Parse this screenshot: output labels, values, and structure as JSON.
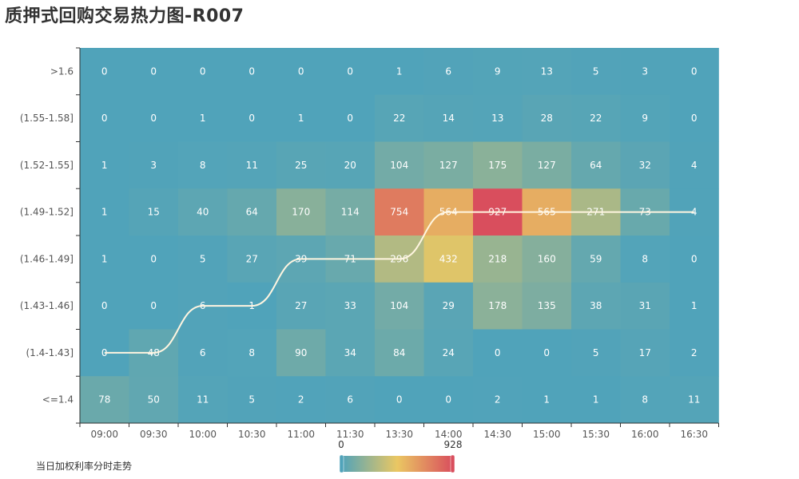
{
  "title": "质押式回购交易热力图-R007",
  "chart_data": {
    "type": "heatmap",
    "x_categories": [
      "09:00",
      "09:30",
      "10:00",
      "10:30",
      "11:00",
      "11:30",
      "13:30",
      "14:00",
      "14:30",
      "15:00",
      "15:30",
      "16:00",
      "16:30"
    ],
    "y_categories": [
      ">1.6",
      "(1.55-1.58]",
      "(1.52-1.55]",
      "(1.49-1.52]",
      "(1.46-1.49]",
      "(1.43-1.46]",
      "(1.4-1.43]",
      "<=1.4"
    ],
    "values": [
      [
        0,
        0,
        0,
        0,
        0,
        0,
        1,
        6,
        9,
        13,
        5,
        3,
        0
      ],
      [
        0,
        0,
        1,
        0,
        1,
        0,
        22,
        14,
        13,
        28,
        22,
        9,
        0
      ],
      [
        1,
        3,
        8,
        11,
        25,
        20,
        104,
        127,
        175,
        127,
        64,
        32,
        4
      ],
      [
        1,
        15,
        40,
        64,
        170,
        114,
        754,
        564,
        927,
        565,
        271,
        73,
        4
      ],
      [
        1,
        0,
        5,
        27,
        39,
        71,
        296,
        432,
        218,
        160,
        59,
        8,
        0
      ],
      [
        0,
        0,
        6,
        1,
        27,
        33,
        104,
        29,
        178,
        135,
        38,
        31,
        1
      ],
      [
        0,
        48,
        6,
        8,
        90,
        34,
        84,
        24,
        0,
        0,
        5,
        17,
        2
      ],
      [
        78,
        50,
        11,
        5,
        2,
        6,
        0,
        0,
        2,
        1,
        1,
        8,
        11
      ]
    ],
    "visual_map": {
      "min": 0,
      "max": 928,
      "min_label": "0",
      "max_label": "928",
      "colors": [
        "#50a3ba",
        "#eac763",
        "#d94e5d"
      ]
    },
    "trend_line": {
      "name": "当日加权利率分时走势",
      "y_levels": [
        "(1.4-1.43]",
        "(1.4-1.43]",
        "(1.43-1.46]",
        "(1.43-1.46]",
        "(1.46-1.49]",
        "(1.46-1.49]",
        "(1.46-1.49]",
        "(1.49-1.52]",
        "(1.49-1.52]",
        "(1.49-1.52]",
        "(1.49-1.52]",
        "(1.49-1.52]",
        "(1.49-1.52]"
      ],
      "color": "#fff5e0"
    }
  }
}
